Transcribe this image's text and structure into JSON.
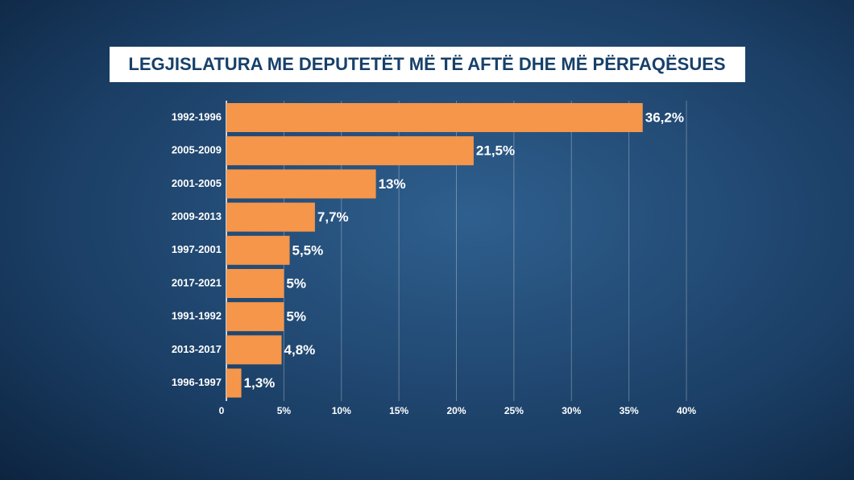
{
  "chart_data": {
    "type": "bar",
    "orientation": "horizontal",
    "title": "LEGJISLATURA ME DEPUTETËT MË TË AFTË DHE MË PËRFAQËSUES",
    "categories": [
      "1992-1996",
      "2005-2009",
      "2001-2005",
      "2009-2013",
      "1997-2001",
      "2017-2021",
      "1991-1992",
      "2013-2017",
      "1996-1997"
    ],
    "values": [
      36.2,
      21.5,
      13,
      7.7,
      5.5,
      5,
      5,
      4.8,
      1.3
    ],
    "value_labels": [
      "36,2%",
      "21,5%",
      "13%",
      "7,7%",
      "5,5%",
      "5%",
      "5%",
      "4,8%",
      "1,3%"
    ],
    "color": "#f5964a",
    "xlim": [
      0,
      40
    ],
    "xticks": [
      0,
      {
        "value": 5,
        "label": "5%"
      },
      {
        "value": 10,
        "label": "10%"
      },
      {
        "value": 15,
        "label": "15%"
      },
      {
        "value": 20,
        "label": "20%"
      },
      {
        "value": 25,
        "label": "25%"
      },
      {
        "value": 30,
        "label": "30%"
      },
      {
        "value": 35,
        "label": "35%"
      },
      {
        "value": 40,
        "label": "40%"
      }
    ],
    "grid": true
  }
}
